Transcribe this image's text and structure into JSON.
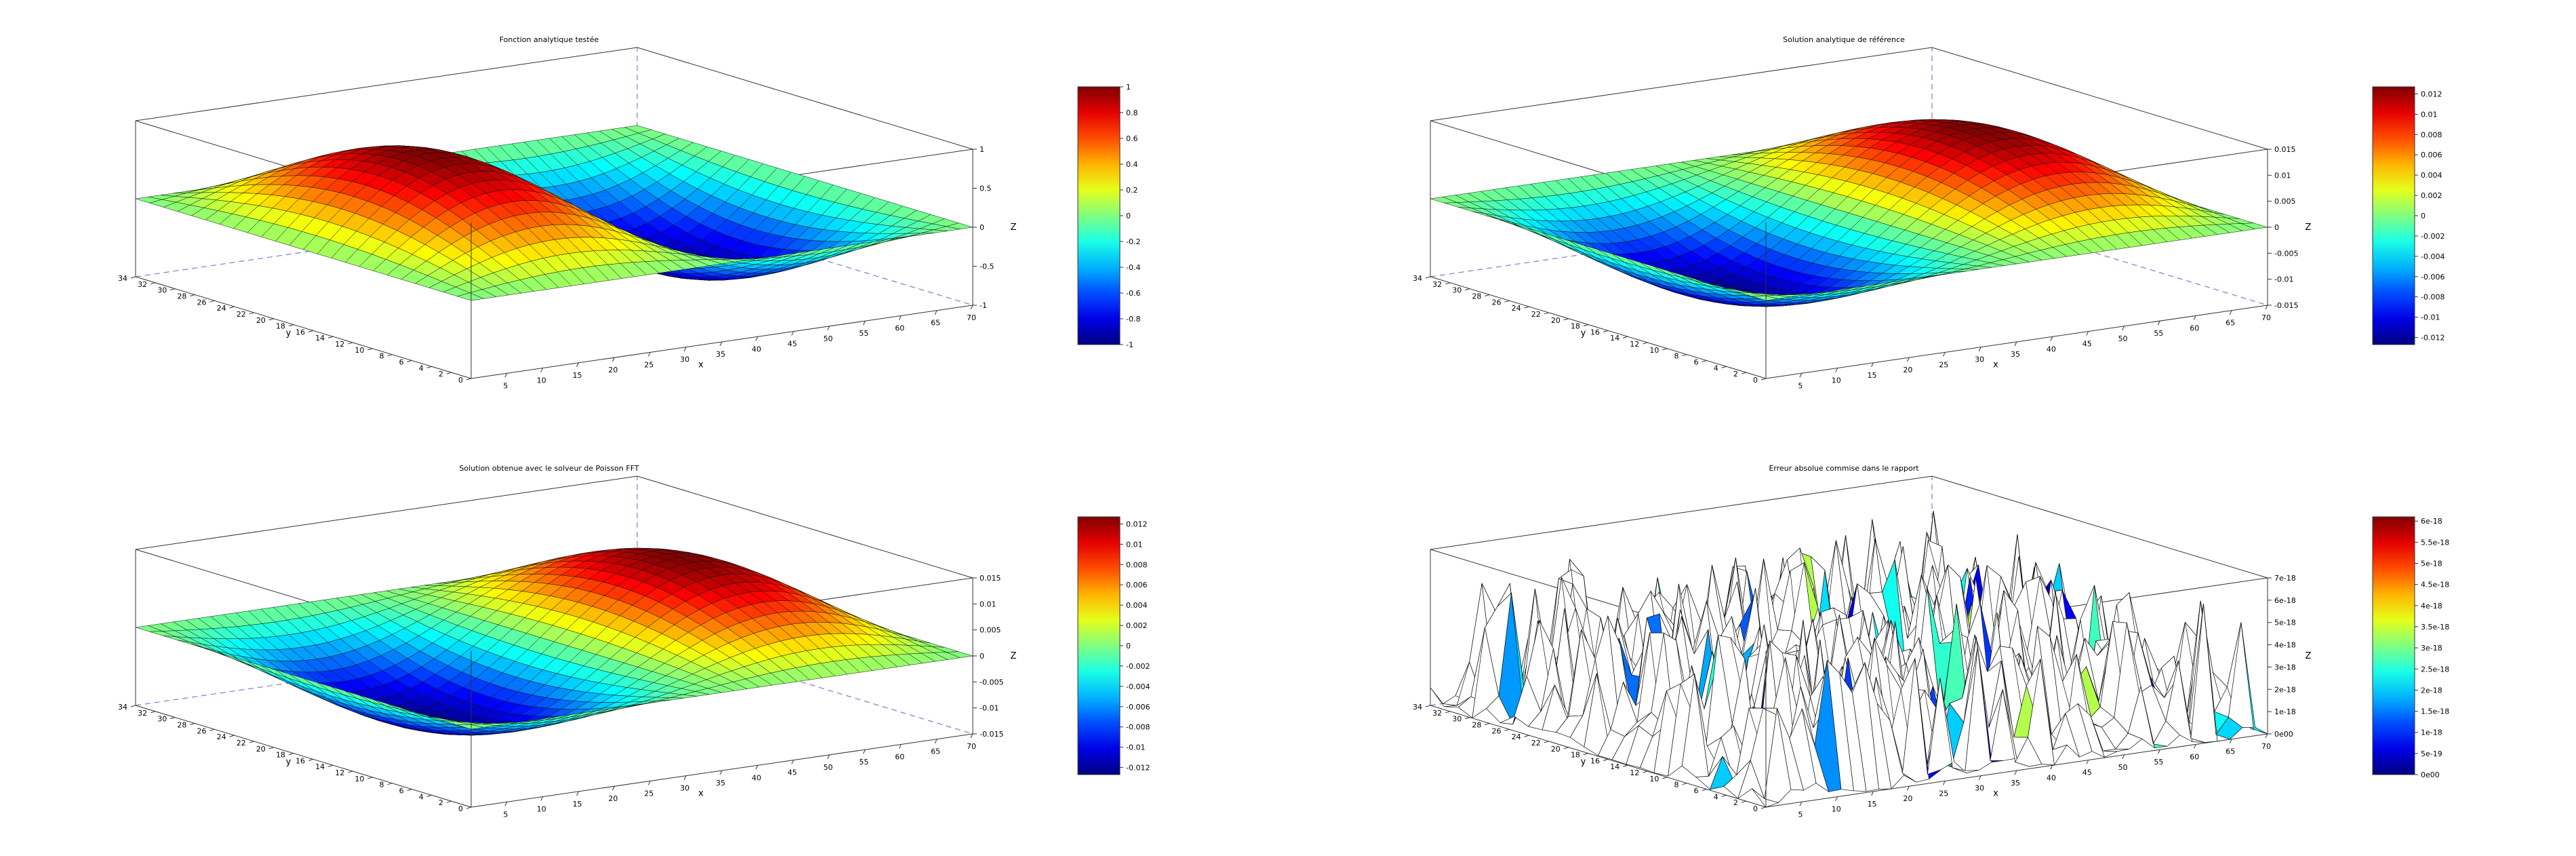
{
  "figure": {
    "background": "#ffffff",
    "colormap": "jet"
  },
  "chart_data": [
    {
      "type": "surface",
      "title": "Fonction analytique testée",
      "xlabel": "x",
      "ylabel": "y",
      "zlabel": "Z",
      "x_range": [
        0,
        70
      ],
      "y_range": [
        0,
        34
      ],
      "z_range": [
        -1,
        1
      ],
      "x_ticks": [
        "5",
        "10",
        "15",
        "20",
        "25",
        "30",
        "35",
        "40",
        "45",
        "50",
        "55",
        "60",
        "65",
        "70"
      ],
      "y_ticks": [
        "0",
        "2",
        "4",
        "6",
        "8",
        "10",
        "12",
        "14",
        "16",
        "18",
        "20",
        "22",
        "24",
        "26",
        "28",
        "30",
        "32",
        "34"
      ],
      "z_ticks": [
        "-1",
        "-0.5",
        "0",
        "0.5",
        "1"
      ],
      "colorbar": {
        "min": -1,
        "max": 1,
        "ticks": [
          "-1",
          "-0.8",
          "-0.6",
          "-0.4",
          "-0.2",
          "0",
          "0.2",
          "0.4",
          "0.6",
          "0.8",
          "1"
        ]
      },
      "surface": {
        "kind": "sin_sin",
        "amplitude": 1,
        "nx": 40,
        "ny": 24,
        "style": "shaded_mesh"
      }
    },
    {
      "type": "surface",
      "title": "Solution analytique de référence",
      "xlabel": "x",
      "ylabel": "y",
      "zlabel": "Z",
      "x_range": [
        0,
        70
      ],
      "y_range": [
        0,
        34
      ],
      "z_range": [
        -0.015,
        0.015
      ],
      "x_ticks": [
        "5",
        "10",
        "15",
        "20",
        "25",
        "30",
        "35",
        "40",
        "45",
        "50",
        "55",
        "60",
        "65",
        "70"
      ],
      "y_ticks": [
        "0",
        "2",
        "4",
        "6",
        "8",
        "10",
        "12",
        "14",
        "16",
        "18",
        "20",
        "22",
        "24",
        "26",
        "28",
        "30",
        "32",
        "34"
      ],
      "z_ticks": [
        "-0.015",
        "-0.01",
        "-0.005",
        "0",
        "0.005",
        "0.01",
        "0.015"
      ],
      "colorbar": {
        "min": -0.0127,
        "max": 0.0127,
        "ticks": [
          "-0.012",
          "-0.01",
          "-0.008",
          "-0.006",
          "-0.004",
          "-0.002",
          "0",
          "0.002",
          "0.004",
          "0.006",
          "0.008",
          "0.01",
          "0.012"
        ]
      },
      "surface": {
        "kind": "sin_sin",
        "amplitude": -0.0127,
        "nx": 40,
        "ny": 24,
        "style": "shaded_mesh"
      }
    },
    {
      "type": "surface",
      "title": "Solution obtenue avec le solveur de Poisson FFT",
      "xlabel": "x",
      "ylabel": "y",
      "zlabel": "Z",
      "x_range": [
        0,
        70
      ],
      "y_range": [
        0,
        34
      ],
      "z_range": [
        -0.015,
        0.015
      ],
      "x_ticks": [
        "5",
        "10",
        "15",
        "20",
        "25",
        "30",
        "35",
        "40",
        "45",
        "50",
        "55",
        "60",
        "65",
        "70"
      ],
      "y_ticks": [
        "0",
        "2",
        "4",
        "6",
        "8",
        "10",
        "12",
        "14",
        "16",
        "18",
        "20",
        "22",
        "24",
        "26",
        "28",
        "30",
        "32",
        "34"
      ],
      "z_ticks": [
        "-0.015",
        "-0.01",
        "-0.005",
        "0",
        "0.005",
        "0.01",
        "0.015"
      ],
      "colorbar": {
        "min": -0.0127,
        "max": 0.0127,
        "ticks": [
          "-0.012",
          "-0.01",
          "-0.008",
          "-0.006",
          "-0.004",
          "-0.002",
          "0",
          "0.002",
          "0.004",
          "0.006",
          "0.008",
          "0.01",
          "0.012"
        ]
      },
      "surface": {
        "kind": "sin_sin",
        "amplitude": -0.0127,
        "nx": 40,
        "ny": 24,
        "style": "shaded_mesh"
      }
    },
    {
      "type": "surface",
      "title": "Erreur absolue commise dans le rapport",
      "xlabel": "x",
      "ylabel": "y",
      "zlabel": "Z",
      "x_range": [
        0,
        70
      ],
      "y_range": [
        0,
        34
      ],
      "z_range": [
        0,
        7e-18
      ],
      "x_ticks": [
        "5",
        "10",
        "15",
        "20",
        "25",
        "30",
        "35",
        "40",
        "45",
        "50",
        "55",
        "60",
        "65",
        "70"
      ],
      "y_ticks": [
        "0",
        "2",
        "4",
        "6",
        "8",
        "10",
        "12",
        "14",
        "16",
        "18",
        "20",
        "22",
        "24",
        "26",
        "28",
        "30",
        "32",
        "34"
      ],
      "z_ticks": [
        "0e00",
        "1e-18",
        "2e-18",
        "3e-18",
        "4e-18",
        "5e-18",
        "6e-18",
        "7e-18"
      ],
      "colorbar": {
        "min": 0,
        "max": 6.1e-18,
        "ticks": [
          "0e00",
          "5e-19",
          "1e-18",
          "1.5e-18",
          "2e-18",
          "2.5e-18",
          "3e-18",
          "3.5e-18",
          "4e-18",
          "4.5e-18",
          "5e-18",
          "5.5e-18",
          "6e-18"
        ]
      },
      "surface": {
        "kind": "noise",
        "amplitude": 6.1e-18,
        "nx": 40,
        "ny": 24,
        "style": "wireframe"
      }
    }
  ]
}
